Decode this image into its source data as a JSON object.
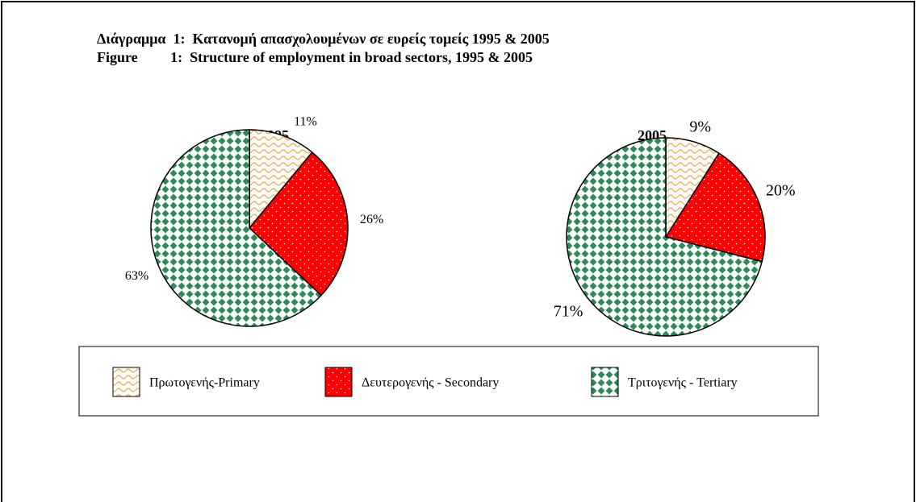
{
  "titles": [
    "Διάγραμμα  1:  Κατανομή απασχολουμένων σε ευρείς τομείς 1995 & 2005",
    "Figure         1:  Structure of employment in broad sectors, 1995 & 2005"
  ],
  "chart_data": [
    {
      "type": "pie",
      "title": "1995",
      "categories": [
        "Πρωτογενής-Primary",
        "Δευτερογενής - Secondary",
        "Τριτογενής - Tertiary"
      ],
      "values": [
        11,
        26,
        63
      ],
      "value_labels": [
        "11%",
        "26%",
        "63%"
      ],
      "colors": [
        "#f4a742",
        "#ff0000",
        "#2e8b57"
      ]
    },
    {
      "type": "pie",
      "title": "2005",
      "categories": [
        "Πρωτογενής-Primary",
        "Δευτερογενής - Secondary",
        "Τριτογενής - Tertiary"
      ],
      "values": [
        9,
        20,
        71
      ],
      "value_labels": [
        "9%",
        "20%",
        "71%"
      ],
      "colors": [
        "#f4a742",
        "#ff0000",
        "#2e8b57"
      ]
    }
  ]
}
